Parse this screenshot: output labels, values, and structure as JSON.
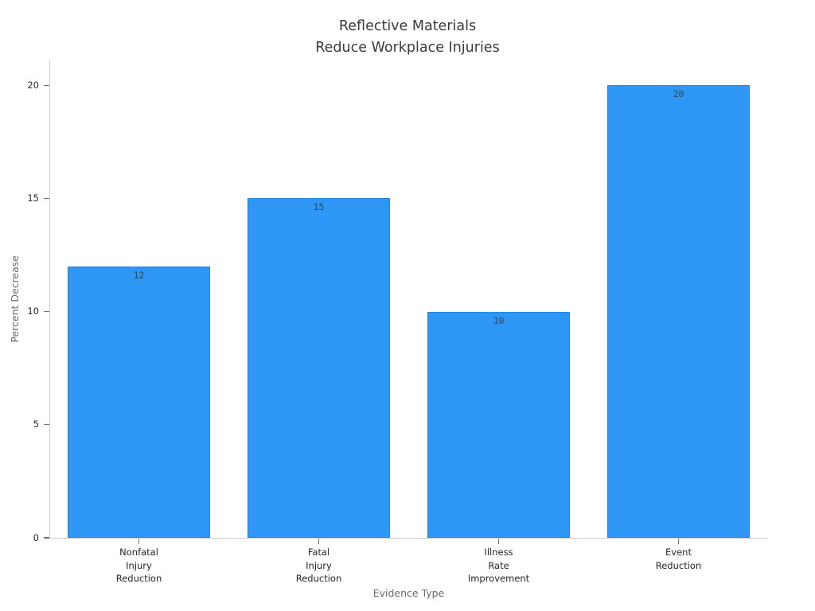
{
  "figure": {
    "title_line1": "Reflective Materials",
    "title_line2": "Reduce Workplace Injuries"
  },
  "chart_data": {
    "type": "bar",
    "title": "Reflective Materials\nReduce Workplace Injuries",
    "categories": [
      [
        "Nonfatal",
        "Injury",
        "Reduction"
      ],
      [
        "Fatal",
        "Injury",
        "Reduction"
      ],
      [
        "Illness",
        "Rate",
        "Improvement"
      ],
      [
        "Event",
        "Reduction"
      ]
    ],
    "values": [
      12,
      15,
      10,
      20
    ],
    "value_labels": [
      "12",
      "15",
      "10",
      "20"
    ],
    "xlabel": "Evidence Type",
    "ylabel": "Percent Decrease",
    "yticks": [
      0,
      5,
      10,
      15,
      20
    ],
    "ylim": [
      0,
      21.1
    ],
    "grid": false,
    "legend": null,
    "bar_color": "#2E96F5",
    "bar_edge_color": "#2587E2",
    "spine_color": "#cccccc",
    "tick_color": "#767676",
    "tick_label_color": "#262626",
    "axis_label_color": "#6b6b6b",
    "title_color": "#3a3a3a",
    "value_label_color": "#37474f"
  }
}
